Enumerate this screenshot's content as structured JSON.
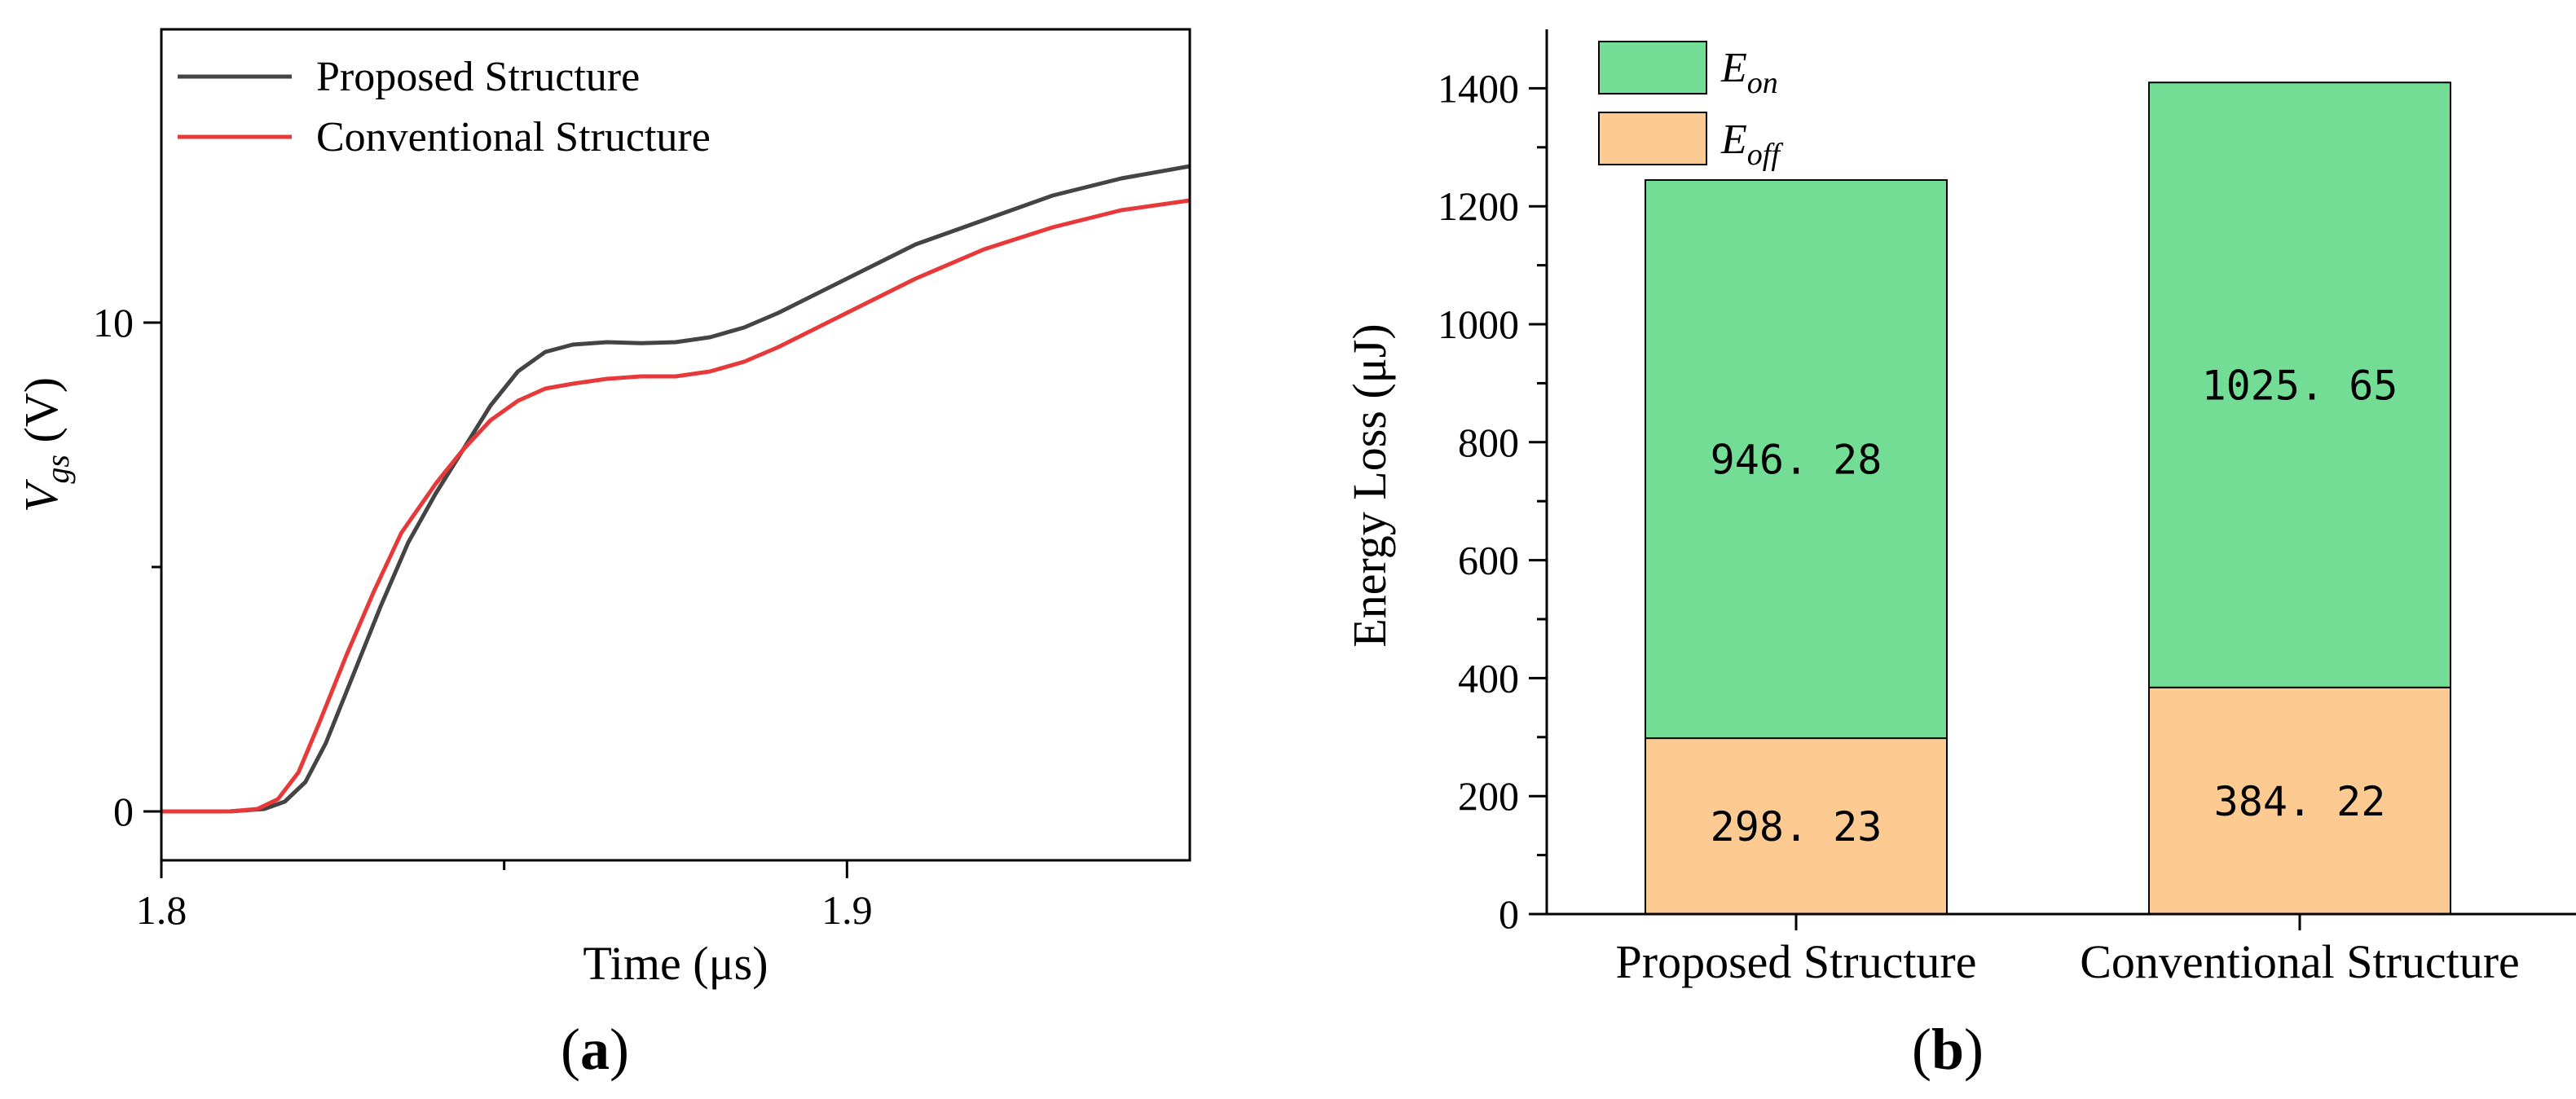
{
  "chart_data": [
    {
      "type": "line",
      "panel_label": "a",
      "title": "",
      "xlabel": "Time (μs)",
      "ylabel_main": "V",
      "ylabel_sub": "gs",
      "ylabel_unit": " (V)",
      "xlim": [
        1.8,
        1.95
      ],
      "ylim": [
        -1,
        16
      ],
      "x_ticks": [
        1.8,
        1.9
      ],
      "x_tick_labels": [
        "1.8",
        "1.9"
      ],
      "x_minor_ticks": [
        1.85
      ],
      "y_ticks": [
        0,
        10
      ],
      "y_tick_labels": [
        "0",
        "10"
      ],
      "y_minor_ticks": [
        5
      ],
      "grid": false,
      "legend_position": "top-left",
      "series": [
        {
          "name": "Proposed Structure",
          "color": "#444444",
          "x": [
            1.8,
            1.81,
            1.815,
            1.818,
            1.821,
            1.824,
            1.828,
            1.832,
            1.836,
            1.84,
            1.844,
            1.848,
            1.852,
            1.856,
            1.86,
            1.865,
            1.87,
            1.875,
            1.88,
            1.885,
            1.89,
            1.9,
            1.91,
            1.92,
            1.93,
            1.94,
            1.95
          ],
          "y": [
            0,
            0,
            0.05,
            0.2,
            0.6,
            1.4,
            2.8,
            4.2,
            5.5,
            6.5,
            7.4,
            8.3,
            9.0,
            9.4,
            9.55,
            9.6,
            9.58,
            9.6,
            9.7,
            9.9,
            10.2,
            10.9,
            11.6,
            12.1,
            12.6,
            12.95,
            13.2
          ]
        },
        {
          "name": "Conventional Structure",
          "color": "#e8393a",
          "x": [
            1.8,
            1.81,
            1.814,
            1.817,
            1.82,
            1.823,
            1.827,
            1.831,
            1.835,
            1.84,
            1.844,
            1.848,
            1.852,
            1.856,
            1.86,
            1.865,
            1.87,
            1.875,
            1.88,
            1.885,
            1.89,
            1.9,
            1.91,
            1.92,
            1.93,
            1.94,
            1.95
          ],
          "y": [
            0,
            0,
            0.05,
            0.25,
            0.8,
            1.8,
            3.2,
            4.5,
            5.7,
            6.7,
            7.4,
            8.0,
            8.4,
            8.65,
            8.75,
            8.85,
            8.9,
            8.9,
            9.0,
            9.2,
            9.5,
            10.2,
            10.9,
            11.5,
            11.95,
            12.3,
            12.5
          ]
        }
      ]
    },
    {
      "type": "bar",
      "stacked": true,
      "panel_label": "b",
      "title": "",
      "xlabel": "",
      "ylabel": "Energy Loss (μJ)",
      "ylim": [
        0,
        1500
      ],
      "y_ticks": [
        0,
        200,
        400,
        600,
        800,
        1000,
        1200,
        1400
      ],
      "y_tick_labels": [
        "0",
        "200",
        "400",
        "600",
        "800",
        "1000",
        "1200",
        "1400"
      ],
      "y_minor_ticks": [
        100,
        300,
        500,
        700,
        900,
        1100,
        1300
      ],
      "categories": [
        "Proposed Structure",
        "Conventional Structure"
      ],
      "grid": false,
      "legend_position": "top-left",
      "series": [
        {
          "name": "E",
          "name_sub": "off",
          "color": "#fdcb92",
          "values": [
            298.23,
            384.22
          ],
          "value_labels": [
            "298. 23",
            "384. 22"
          ]
        },
        {
          "name": "E",
          "name_sub": "on",
          "color": "#74dd95",
          "values": [
            946.28,
            1025.65
          ],
          "value_labels": [
            "946. 28",
            "1025. 65"
          ]
        }
      ]
    }
  ]
}
